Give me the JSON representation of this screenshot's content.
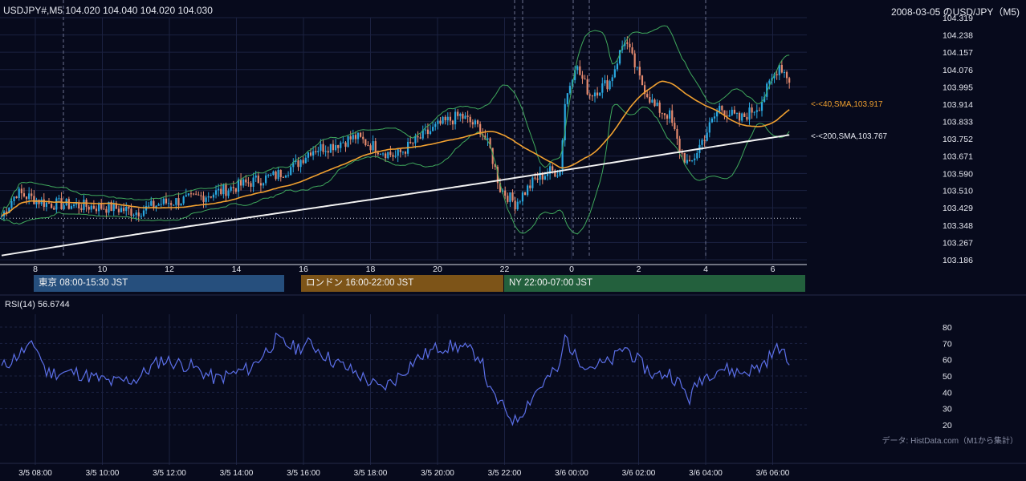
{
  "header": {
    "symbol_info": "USDJPY#,M5 104.020 104.040 104.020 104.030",
    "title": "2008-03-05 のUSD/JPY（M5)"
  },
  "colors": {
    "background": "#070a1c",
    "grid": "#1b2140",
    "candle_up": "#29a8e0",
    "candle_down": "#e58a6e",
    "bollinger": "#3fa85c",
    "sma40": "#f0a030",
    "sma200": "#f2f2f2",
    "rsi": "#5b6fe8",
    "tokyo": "#264f7d",
    "london": "#7d5418",
    "ny": "#23603d"
  },
  "sessions": [
    {
      "label": "東京 08:00-15:30 JST",
      "color": "#264f7d"
    },
    {
      "label": "ロンドン 16:00-22:00 JST",
      "color": "#7d5418"
    },
    {
      "label": "NY 22:00-07:00 JST",
      "color": "#23603d"
    }
  ],
  "source_note": "データ: HistData.com（M1から集計）",
  "chart_data": [
    {
      "type": "candlestick",
      "name": "price",
      "y_ticks": [
        "104.319",
        "104.238",
        "104.157",
        "104.076",
        "103.995",
        "103.914",
        "103.833",
        "103.752",
        "103.671",
        "103.590",
        "103.510",
        "103.429",
        "103.348",
        "103.267",
        "103.186"
      ],
      "ylim": [
        103.186,
        104.319
      ],
      "x_hour_ticks": [
        "8",
        "10",
        "12",
        "14",
        "16",
        "18",
        "20",
        "22",
        "0",
        "2",
        "4",
        "6"
      ],
      "reference_line": 103.38,
      "annotations": [
        {
          "label": "<-<40,SMA,103.917",
          "value": 103.917
        },
        {
          "label": "<-<200,SMA,103.767",
          "value": 103.767
        }
      ],
      "series": [
        {
          "name": "<40,SMA",
          "last": 103.917
        },
        {
          "name": "<200,SMA",
          "last": 103.767
        }
      ],
      "key_path": [
        [
          0,
          103.39
        ],
        [
          6,
          103.5
        ],
        [
          18,
          103.45
        ],
        [
          30,
          103.44
        ],
        [
          44,
          103.43
        ],
        [
          54,
          103.41
        ],
        [
          64,
          103.45
        ],
        [
          76,
          103.47
        ],
        [
          86,
          103.5
        ],
        [
          100,
          103.55
        ],
        [
          110,
          103.58
        ],
        [
          118,
          103.63
        ],
        [
          124,
          103.7
        ],
        [
          132,
          103.72
        ],
        [
          142,
          103.76
        ],
        [
          152,
          103.7
        ],
        [
          158,
          103.67
        ],
        [
          166,
          103.74
        ],
        [
          176,
          103.82
        ],
        [
          184,
          103.86
        ],
        [
          192,
          103.8
        ],
        [
          196,
          103.7
        ],
        [
          200,
          103.52
        ],
        [
          206,
          103.45
        ],
        [
          214,
          103.56
        ],
        [
          220,
          103.6
        ],
        [
          224,
          103.6
        ],
        [
          226,
          103.92
        ],
        [
          230,
          104.1
        ],
        [
          236,
          103.96
        ],
        [
          244,
          104.02
        ],
        [
          250,
          104.22
        ],
        [
          256,
          104.03
        ],
        [
          262,
          103.9
        ],
        [
          268,
          103.86
        ],
        [
          272,
          103.7
        ],
        [
          276,
          103.62
        ],
        [
          280,
          103.72
        ],
        [
          288,
          103.9
        ],
        [
          296,
          103.84
        ],
        [
          304,
          103.91
        ],
        [
          312,
          104.1
        ],
        [
          316,
          104.03
        ]
      ],
      "key_session_anchors": [
        0.4,
        1.02,
        1.9,
        1.1
      ],
      "rsi_label": "RSI(14) 56.6744"
    },
    {
      "type": "line",
      "name": "RSI(14)",
      "y_ticks": [
        "80",
        "70",
        "60",
        "50",
        "40",
        "30",
        "20"
      ],
      "ylim": [
        20,
        80
      ],
      "x_tick_labels": [
        "3/5 08:00",
        "3/5 10:00",
        "3/5 12:00",
        "3/5 14:00",
        "3/5 16:00",
        "3/5 18:00",
        "3/5 20:00",
        "3/5 22:00",
        "3/6 00:00",
        "3/6 02:00",
        "3/6 04:00",
        "3/6 06:00"
      ],
      "last_value": 56.6744,
      "key_path": [
        [
          0,
          55
        ],
        [
          10,
          67
        ],
        [
          14,
          68
        ],
        [
          18,
          52
        ],
        [
          30,
          52
        ],
        [
          44,
          46
        ],
        [
          54,
          48
        ],
        [
          64,
          60
        ],
        [
          76,
          56
        ],
        [
          86,
          48
        ],
        [
          100,
          55
        ],
        [
          110,
          72
        ],
        [
          118,
          67
        ],
        [
          124,
          70
        ],
        [
          132,
          60
        ],
        [
          142,
          52
        ],
        [
          152,
          42
        ],
        [
          158,
          48
        ],
        [
          166,
          60
        ],
        [
          176,
          68
        ],
        [
          184,
          68
        ],
        [
          192,
          62
        ],
        [
          196,
          40
        ],
        [
          206,
          22
        ],
        [
          214,
          40
        ],
        [
          220,
          50
        ],
        [
          224,
          55
        ],
        [
          226,
          75
        ],
        [
          230,
          62
        ],
        [
          236,
          56
        ],
        [
          244,
          58
        ],
        [
          250,
          68
        ],
        [
          256,
          58
        ],
        [
          262,
          50
        ],
        [
          268,
          52
        ],
        [
          272,
          45
        ],
        [
          276,
          36
        ],
        [
          280,
          48
        ],
        [
          288,
          55
        ],
        [
          296,
          52
        ],
        [
          304,
          55
        ],
        [
          312,
          68
        ],
        [
          316,
          57
        ]
      ]
    }
  ]
}
